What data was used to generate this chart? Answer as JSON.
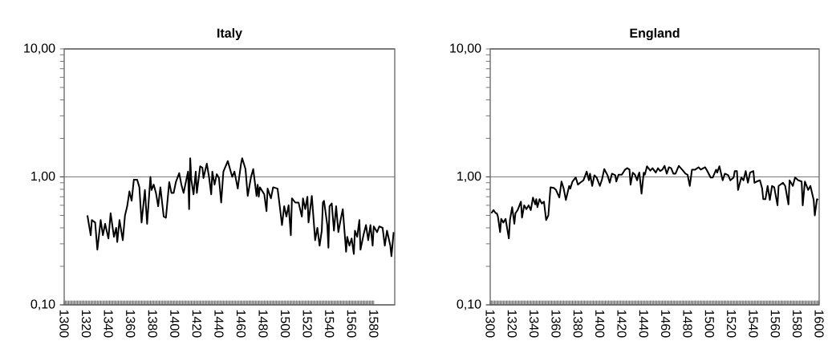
{
  "chart_data": [
    {
      "type": "line",
      "title": "Italy",
      "log": "y",
      "grid": "y",
      "xlim": [
        1300,
        1599
      ],
      "ylim": [
        0.1,
        10
      ],
      "xticks": [
        1300,
        1320,
        1340,
        1360,
        1380,
        1400,
        1420,
        1440,
        1460,
        1480,
        1500,
        1520,
        1540,
        1560,
        1580
      ],
      "yticks": [
        {
          "value": 0.1,
          "label": "0,10"
        },
        {
          "value": 1,
          "label": "1,00"
        },
        {
          "value": 10,
          "label": "10,00"
        }
      ],
      "series": [
        {
          "color": "#000000",
          "x": [
            1321,
            1324,
            1325,
            1328,
            1330,
            1333,
            1335,
            1337,
            1340,
            1342,
            1345,
            1347,
            1348,
            1350,
            1353,
            1355,
            1357,
            1359,
            1361,
            1363,
            1366,
            1368,
            1370,
            1373,
            1375,
            1378,
            1379,
            1381,
            1383,
            1385,
            1387,
            1390,
            1392,
            1393,
            1395,
            1397,
            1399,
            1401,
            1404,
            1406,
            1408,
            1412,
            1413,
            1414,
            1415,
            1417,
            1419,
            1420,
            1423,
            1425,
            1426,
            1429,
            1431,
            1433,
            1434,
            1436,
            1438,
            1440,
            1442,
            1444,
            1448,
            1450,
            1452,
            1454,
            1457,
            1458,
            1460,
            1461,
            1464,
            1466,
            1469,
            1471,
            1474,
            1475,
            1476,
            1477,
            1481,
            1483,
            1484,
            1487,
            1489,
            1493,
            1495,
            1497,
            1499,
            1501,
            1503,
            1505,
            1506,
            1509,
            1512,
            1515,
            1516,
            1518,
            1520,
            1521,
            1524,
            1527,
            1529,
            1531,
            1533,
            1534,
            1535,
            1538,
            1539,
            1540,
            1542,
            1544,
            1546,
            1548,
            1550,
            1552,
            1555,
            1556,
            1558,
            1560,
            1562,
            1563,
            1565,
            1567,
            1568,
            1571,
            1573,
            1575,
            1577,
            1579,
            1580,
            1583,
            1585,
            1588,
            1590,
            1592,
            1595,
            1596,
            1598
          ],
          "values": [
            0.5,
            0.35,
            0.46,
            0.44,
            0.27,
            0.46,
            0.35,
            0.43,
            0.33,
            0.52,
            0.34,
            0.4,
            0.31,
            0.46,
            0.32,
            0.5,
            0.59,
            0.77,
            0.65,
            0.95,
            0.95,
            0.83,
            0.44,
            0.79,
            0.43,
            1.0,
            0.79,
            0.87,
            0.75,
            0.59,
            0.83,
            0.49,
            0.48,
            0.59,
            0.91,
            0.75,
            0.75,
            0.91,
            1.07,
            0.87,
            0.75,
            1.1,
            0.56,
            1.4,
            0.95,
            0.73,
            1.1,
            0.75,
            1.21,
            1.18,
            0.98,
            1.27,
            1.0,
            0.73,
            1.1,
            0.87,
            1.05,
            0.98,
            0.63,
            1.1,
            1.33,
            1.15,
            1.0,
            1.1,
            0.81,
            0.95,
            1.27,
            1.4,
            1.15,
            0.71,
            1.0,
            1.15,
            0.71,
            0.87,
            0.7,
            0.83,
            0.73,
            0.54,
            0.81,
            0.68,
            0.83,
            0.81,
            0.59,
            0.42,
            0.59,
            0.49,
            0.6,
            0.35,
            0.68,
            0.63,
            0.63,
            0.49,
            0.68,
            0.56,
            0.7,
            0.44,
            0.71,
            0.32,
            0.4,
            0.29,
            0.38,
            0.63,
            0.65,
            0.42,
            0.28,
            0.59,
            0.62,
            0.38,
            0.59,
            0.37,
            0.46,
            0.56,
            0.26,
            0.34,
            0.29,
            0.33,
            0.25,
            0.38,
            0.34,
            0.46,
            0.27,
            0.36,
            0.42,
            0.32,
            0.42,
            0.29,
            0.41,
            0.37,
            0.41,
            0.4,
            0.29,
            0.38,
            0.29,
            0.24,
            0.37
          ]
        }
      ]
    },
    {
      "type": "line",
      "title": "England",
      "log": "y",
      "grid": "y",
      "xlim": [
        1300,
        1600
      ],
      "ylim": [
        0.1,
        10
      ],
      "xticks": [
        1300,
        1320,
        1340,
        1360,
        1380,
        1400,
        1420,
        1440,
        1460,
        1480,
        1500,
        1520,
        1540,
        1560,
        1580,
        1600
      ],
      "yticks": [
        {
          "value": 0.1,
          "label": "0,10"
        },
        {
          "value": 1,
          "label": "1,00"
        },
        {
          "value": 10,
          "label": "10,00"
        }
      ],
      "series": [
        {
          "color": "#000000",
          "x": [
            1301,
            1303,
            1305,
            1306,
            1307,
            1309,
            1310,
            1312,
            1314,
            1317,
            1318,
            1320,
            1322,
            1323,
            1325,
            1328,
            1329,
            1331,
            1333,
            1335,
            1337,
            1339,
            1341,
            1342,
            1343,
            1345,
            1347,
            1349,
            1351,
            1353,
            1355,
            1358,
            1360,
            1363,
            1365,
            1367,
            1369,
            1372,
            1373,
            1375,
            1378,
            1380,
            1382,
            1385,
            1388,
            1390,
            1391,
            1393,
            1395,
            1397,
            1400,
            1402,
            1404,
            1407,
            1409,
            1411,
            1414,
            1415,
            1417,
            1420,
            1423,
            1425,
            1427,
            1428,
            1430,
            1432,
            1434,
            1435,
            1436,
            1438,
            1440,
            1441,
            1443,
            1446,
            1448,
            1451,
            1453,
            1455,
            1457,
            1459,
            1461,
            1463,
            1465,
            1467,
            1469,
            1472,
            1473,
            1475,
            1478,
            1480,
            1482,
            1484,
            1487,
            1490,
            1492,
            1496,
            1498,
            1501,
            1503,
            1506,
            1507,
            1509,
            1512,
            1514,
            1517,
            1519,
            1522,
            1523,
            1525,
            1526,
            1529,
            1531,
            1533,
            1535,
            1537,
            1540,
            1541,
            1543,
            1546,
            1548,
            1549,
            1551,
            1553,
            1555,
            1557,
            1559,
            1562,
            1563,
            1567,
            1569,
            1572,
            1573,
            1576,
            1578,
            1581,
            1584,
            1585,
            1587,
            1590,
            1592,
            1595,
            1596,
            1598,
            1599
          ],
          "values": [
            0.52,
            0.55,
            0.52,
            0.52,
            0.49,
            0.37,
            0.47,
            0.44,
            0.47,
            0.33,
            0.46,
            0.58,
            0.43,
            0.52,
            0.55,
            0.64,
            0.48,
            0.6,
            0.56,
            0.6,
            0.55,
            0.69,
            0.61,
            0.67,
            0.58,
            0.67,
            0.62,
            0.64,
            0.46,
            0.5,
            0.83,
            0.82,
            0.79,
            0.69,
            0.92,
            0.81,
            0.66,
            0.85,
            0.81,
            0.92,
            0.99,
            0.87,
            0.9,
            0.94,
            1.1,
            0.94,
            1.06,
            0.85,
            1.03,
            0.99,
            0.85,
            0.96,
            1.15,
            1.03,
            0.9,
            1.06,
            1.03,
            0.92,
            1.04,
            1.04,
            1.14,
            1.17,
            1.14,
            0.87,
            1.08,
            1.04,
            0.94,
            1.03,
            1.08,
            0.74,
            1.08,
            1.04,
            1.21,
            1.12,
            1.17,
            1.08,
            1.17,
            1.11,
            1.14,
            1.22,
            1.06,
            1.19,
            1.17,
            1.06,
            1.06,
            1.22,
            1.19,
            1.14,
            1.06,
            1.04,
            0.85,
            1.14,
            1.14,
            1.19,
            1.14,
            1.19,
            1.11,
            0.99,
            0.99,
            1.14,
            1.08,
            1.21,
            0.94,
            1.06,
            1.03,
            0.94,
            0.99,
            1.11,
            1.11,
            0.79,
            0.99,
            0.94,
            1.11,
            0.9,
            1.08,
            1.11,
            0.9,
            0.92,
            0.94,
            0.81,
            0.67,
            0.67,
            0.85,
            0.66,
            0.85,
            0.83,
            0.6,
            0.85,
            0.9,
            0.85,
            0.61,
            0.94,
            0.85,
            0.99,
            0.94,
            0.92,
            0.6,
            0.92,
            0.79,
            0.85,
            0.66,
            0.5,
            0.67,
            0.66
          ]
        }
      ]
    }
  ]
}
